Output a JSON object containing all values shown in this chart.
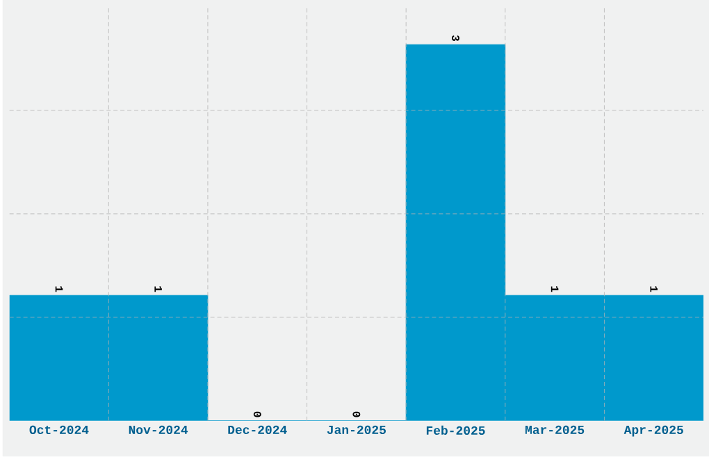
{
  "chart_data": {
    "type": "bar",
    "categories": [
      "Oct-2024",
      "Nov-2024",
      "Dec-2024",
      "Jan-2025",
      "Feb-2025",
      "Mar-2025",
      "Apr-2025"
    ],
    "values": [
      1,
      1,
      0,
      0,
      3,
      1,
      1
    ],
    "color": "#0099cc",
    "ylim": [
      0,
      3.3
    ],
    "yticks": [
      {
        "value": 0.825,
        "label": null
      },
      {
        "value": 1.65,
        "label": null
      },
      {
        "value": 2.475,
        "label": null
      }
    ],
    "tick_labels": "x",
    "grid": true,
    "data_labels": true
  }
}
